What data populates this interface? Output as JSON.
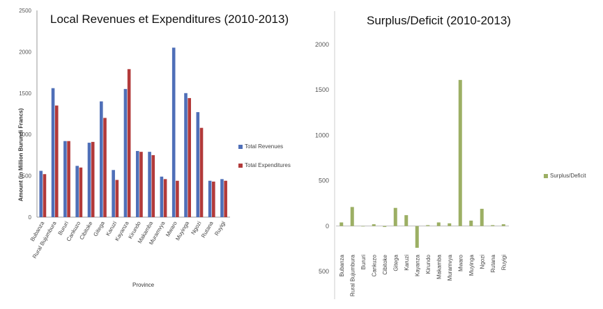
{
  "chart_data": [
    {
      "type": "bar",
      "title": "Local Revenues et Expenditures (2010-2013)",
      "xlabel": "Province",
      "ylabel": "Amount (in Million Burundi Francs)",
      "ylim": [
        0,
        2500
      ],
      "yticks": [
        0,
        500,
        1000,
        1500,
        2000,
        2500
      ],
      "categories": [
        "Bubanza",
        "Rural Bujumbura",
        "Bururi",
        "Cankuzo",
        "Cibitoke",
        "Gitega",
        "Karuzi",
        "Kayanza",
        "Kirundo",
        "Makamba",
        "Muramvya",
        "Mwaro",
        "Muyinga",
        "Ngozi",
        "Rutana",
        "Ruyigi"
      ],
      "series": [
        {
          "name": "Total Revenues",
          "color": "#4f6fb8",
          "values": [
            560,
            1560,
            920,
            620,
            900,
            1400,
            570,
            1550,
            800,
            790,
            490,
            2050,
            1500,
            1270,
            440,
            460
          ]
        },
        {
          "name": "Total Expenditures",
          "color": "#b23a3a",
          "values": [
            520,
            1350,
            920,
            600,
            910,
            1200,
            450,
            1790,
            790,
            750,
            460,
            440,
            1440,
            1080,
            430,
            440
          ]
        }
      ],
      "legend": "right",
      "grid": false
    },
    {
      "type": "bar",
      "title": "Surplus/Deficit (2010-2013)",
      "xlabel": "",
      "ylabel": "",
      "ylim": [
        -500,
        2000
      ],
      "yticks": [
        -500,
        0,
        500,
        1000,
        1500,
        2000
      ],
      "ytick_labels": [
        "500",
        "0",
        "500",
        "1000",
        "1500",
        "2000"
      ],
      "categories": [
        "Bubanza",
        "Rural Bujumbura",
        "Bururi",
        "Cankuzo",
        "Cibitoke",
        "Gitega",
        "Karuzi",
        "Kayanza",
        "Kirundo",
        "Makamba",
        "Muramvya",
        "Mwaro",
        "Muyinga",
        "Ngozi",
        "Rutana",
        "Ruyigi"
      ],
      "series": [
        {
          "name": "Surplus/Deficit",
          "color": "#9caf64",
          "values": [
            40,
            210,
            0,
            20,
            -10,
            200,
            120,
            -240,
            10,
            40,
            30,
            1610,
            60,
            190,
            10,
            20
          ]
        }
      ],
      "legend": "right",
      "grid": false
    }
  ]
}
